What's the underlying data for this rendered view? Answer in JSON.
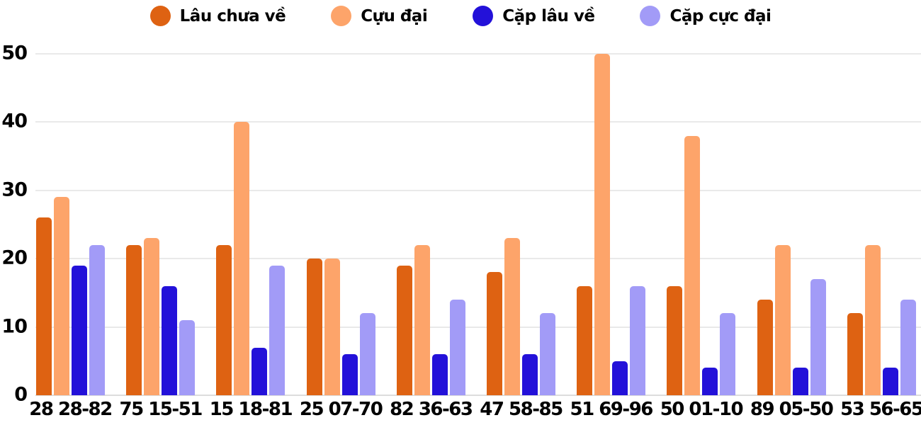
{
  "chart_data": {
    "type": "bar",
    "title": "",
    "xlabel": "",
    "ylabel": "",
    "categories": [
      "28 28-82",
      "75 15-51",
      "15 18-81",
      "25 07-70",
      "82 36-63",
      "47 58-85",
      "51 69-96",
      "50 01-10",
      "89 05-50",
      "53 56-65"
    ],
    "series": [
      {
        "name": "Lâu chưa về",
        "color": "#de6212",
        "values": [
          26,
          22,
          22,
          20,
          19,
          18,
          16,
          16,
          14,
          12
        ]
      },
      {
        "name": "Cựu đại",
        "color": "#fda46a",
        "values": [
          29,
          23,
          40,
          20,
          22,
          23,
          50,
          38,
          22,
          22
        ]
      },
      {
        "name": "Cặp lâu về",
        "color": "#2311d9",
        "values": [
          19,
          16,
          7,
          6,
          6,
          6,
          5,
          4,
          4,
          4
        ]
      },
      {
        "name": "Cặp cực đại",
        "color": "#a29bf7",
        "values": [
          22,
          11,
          19,
          12,
          14,
          12,
          16,
          12,
          17,
          14
        ]
      }
    ],
    "ylim": [
      0,
      50
    ],
    "yticks": [
      0,
      10,
      20,
      30,
      40,
      50
    ],
    "grid": true,
    "legend_position": "top",
    "colors": {
      "axis_text": "#000000",
      "gridline": "#e9e9e9",
      "baseline": "#dcdcdc",
      "background": "#ffffff"
    }
  }
}
